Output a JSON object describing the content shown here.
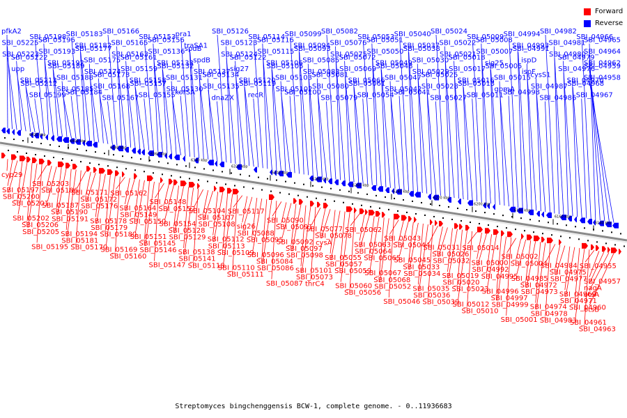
{
  "legend": {
    "forward": {
      "label": "Forward",
      "color": "#ff0000"
    },
    "reverse": {
      "label": "Reverse",
      "color": "#0000ff"
    }
  },
  "caption": "Streptomyces bingchenggensis BCW-1, complete genome. - 0..11936683",
  "axis": {
    "ticks": [
      "6420 kbp",
      "6400 kbp",
      "6380 kbp",
      "6360 kbp",
      "6340 kbp",
      "6320 kbp",
      "6300 kbp",
      "6280 kbp",
      "6260 kbp",
      "6240 kbp",
      "6220 kbp",
      "6200 kbp",
      "6180 kbp",
      "6160 kbp",
      "6140 kbp"
    ]
  },
  "reverse_labels": [
    "pfkA2",
    "SBI_05225",
    "SBI_05223",
    "SBI_05222",
    "upp",
    "SBI_05213",
    "SBI_05212",
    "SBI_05199",
    "SBI_05198",
    "SBI_05196",
    "SBI_05193",
    "SBI_05192",
    "SBI_05189",
    "SBI_05188",
    "SBI_05185",
    "SBI_05184",
    "SBI_05183",
    "SBI_05182",
    "SBI_05177",
    "SBI_05175",
    "SBI_05174",
    "SBI_05173",
    "SBI_05168",
    "SBI_05167",
    "SBI_05166",
    "SBI_05165",
    "SBI_05163",
    "SBI_05161",
    "SBI_05159",
    "SBI_05158",
    "SBI_05157",
    "SBI_05155",
    "SBI_05153",
    "SBI_05156",
    "SBI_05136",
    "SBI_05133",
    "SBI_05132",
    "SBI_05131",
    "SBI_05130",
    "korSA",
    "pra1",
    "traSA1",
    "spdB",
    "spdB",
    "SBI_05137",
    "SBI_05134",
    "SBI_05135",
    "dnaZX",
    "SBI_05126",
    "SBI_05123",
    "SBI_05124",
    "SBI_05122",
    "sig27",
    "SBI_05120",
    "SBI_05119",
    "recR",
    "SBI_05114",
    "SBI_05116",
    "SBI_05115",
    "SBI_05106",
    "SBI_05105",
    "SBI_05103",
    "SBI_05102",
    "SBI_05100",
    "SBI_05099",
    "SBI_05094",
    "SBI_05093",
    "SBI_05085",
    "SBI_05083",
    "SBI_05081",
    "SBI_05080",
    "SBI_05079",
    "SBI_05082",
    "SBI_05076",
    "SBI_05075",
    "SBI_05072",
    "SBI_05069",
    "SBI_05066",
    "SBI_05061",
    "SBI_05054",
    "SBI_05053",
    "SBI_05051",
    "SBI_05050",
    "SBI_05049",
    "SBI_05048",
    "SBI_05047",
    "SBI_05042",
    "SBI_05041",
    "SBI_05040",
    "SBI_05037",
    "SBI_05038",
    "SBI_05030",
    "SBI_05029",
    "SBI_05025",
    "SBI_05028",
    "SBI_05027",
    "SBI_05024",
    "SBI_05022",
    "SBI_05021",
    "SBI_05018",
    "SBI_05017",
    "SBI_05016",
    "SBI_05013",
    "SBI_05011",
    "SBI_05009",
    "SBI_05008",
    "SBI_05007",
    "sig25",
    "SBI_05005",
    "SBI_05015",
    "gpmA",
    "SBI_04998",
    "SBI_04994",
    "SBI_04993",
    "SBI_04991",
    "ispD",
    "ispF",
    "cysS1",
    "SBI_04987",
    "SBI_04986",
    "SBI_04982",
    "SBI_04981",
    "SBI_04980",
    "SBI_04979",
    "SBI_04976",
    "SBI_04970",
    "SBI_04968",
    "SBI_04967",
    "SBI_04966",
    "SBI_04965",
    "SBI_04964",
    "SBI_04962",
    "SBI_04959",
    "SBI_04958"
  ],
  "forward_labels": [
    "cyp29",
    "SBI_05197",
    "SBI_05200",
    "SBI_05201",
    "SBI_05202",
    "SBI_05206",
    "SBI_05205",
    "SBI_05195",
    "SBI_05203",
    "SBI_05186",
    "SBI_05187",
    "SBI_05190",
    "SBI_05191",
    "SBI_05194",
    "SBI_05181",
    "SBI_05170",
    "SBI_05171",
    "SBI_05172",
    "SBI_05176",
    "SBI_05178",
    "SBI_05179",
    "SBI_05180",
    "SBI_05169",
    "SBI_05160",
    "SBI_05162",
    "SBI_05164",
    "SBI_05149",
    "SBI_05150",
    "SBI_05151",
    "SBI_05145",
    "SBI_05146",
    "SBI_05147",
    "SBI_05148",
    "SBI_05152",
    "SBI_05154",
    "SBI_05128",
    "SBI_05129",
    "SBI_05138",
    "SBI_05141",
    "SBI_05118",
    "SBI_05104",
    "SBI_05107",
    "SBI_05108",
    "SBI_05112",
    "SBI_05113",
    "SBI_05109",
    "SBI_05110",
    "SBI_05111",
    "SBI_05117",
    "sig26",
    "SBI_05088",
    "SBI_05095",
    "SBI_05096",
    "SBI_05084",
    "SBI_05086",
    "SBI_05087",
    "SBI_05090",
    "SBI_05091",
    "SBI_05092",
    "SBI_05097",
    "SBI_05098",
    "SBI_05101",
    "SBI_05073",
    "thrC4",
    "SBI_05077",
    "SBI_05078",
    "cysA",
    "SBI_05055",
    "SBI_05057",
    "SBI_05059",
    "SBI_05060",
    "SBI_05056",
    "SBI_05062",
    "SBI_05063",
    "SBI_05064",
    "SBI_05065",
    "SBI_05067",
    "SBI_05068",
    "SBI_05052",
    "SBI_05046",
    "SBI_05043",
    "SBI_05044",
    "SBI_05045",
    "SBI_05033",
    "SBI_05034",
    "SBI_05035",
    "SBI_05036",
    "SBI_05039",
    "SBI_05031",
    "SBI_05026",
    "SBI_05032",
    "SBI_05019",
    "SBI_05020",
    "SBI_05023",
    "SBI_05012",
    "SBI_05010",
    "SBI_05014",
    "SBI_05000",
    "SBI_04992",
    "SBI_04995",
    "SBI_04996",
    "SBI_04997",
    "SBI_04999",
    "SBI_05001",
    "SBI_05002",
    "SBI_05004",
    "SBI_04985",
    "SBI_04972",
    "SBI_04973",
    "SBI_04974",
    "SBI_04978",
    "SBI_04983",
    "SBI_04984",
    "SBI_04975",
    "SBI_04977",
    "SBI_04969",
    "SBI_04971",
    "SBI_04960",
    "SBI_04961",
    "SBI_04963",
    "SBI_04955",
    "SBI_04957",
    "nagA",
    "otsA",
    "otsB"
  ]
}
